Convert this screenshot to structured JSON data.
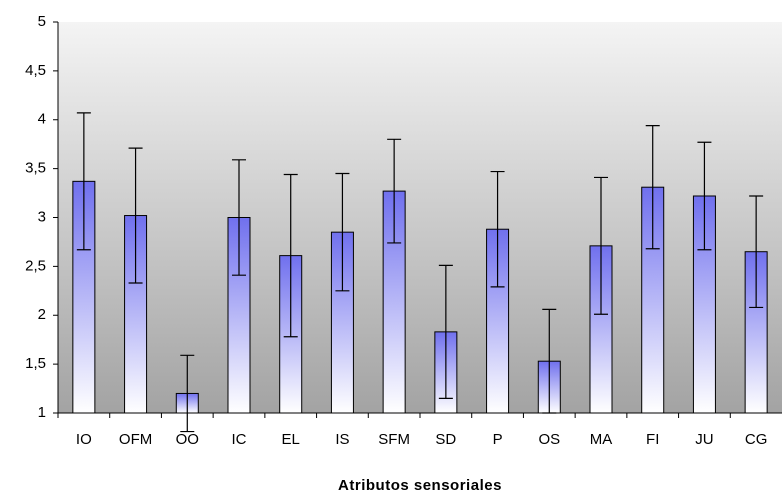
{
  "chart_data": {
    "type": "bar",
    "x_label": "Atributos sensoriales",
    "categories": [
      "IO",
      "OFM",
      "OO",
      "IC",
      "EL",
      "IS",
      "SFM",
      "SD",
      "P",
      "OS",
      "MA",
      "FI",
      "JU",
      "CG"
    ],
    "values": [
      3.37,
      3.02,
      1.2,
      3.0,
      2.61,
      2.85,
      3.27,
      1.83,
      2.88,
      1.53,
      2.71,
      3.31,
      3.22,
      2.65
    ],
    "errors": [
      0.7,
      0.69,
      0.39,
      0.59,
      0.83,
      0.6,
      0.53,
      0.68,
      0.59,
      0.53,
      0.7,
      0.63,
      0.55,
      0.57
    ],
    "color": "#7070ee",
    "ylim": [
      1,
      5
    ],
    "yticks": [
      1,
      {
        "value": 1.5,
        "label": "1,5"
      },
      2,
      {
        "value": 2.5,
        "label": "2,5"
      },
      3,
      {
        "value": 3.5,
        "label": "3,5"
      },
      4,
      {
        "value": 4.5,
        "label": "4,5"
      },
      5
    ]
  }
}
